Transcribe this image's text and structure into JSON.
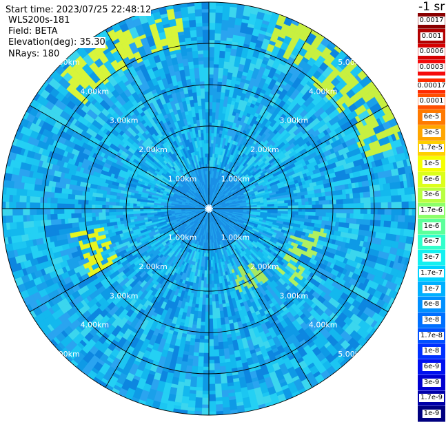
{
  "header": {
    "start_time": "Start time: 2023/07/25 22:48:12",
    "instrument": "WLS200s-181",
    "field": "Field: BETA",
    "elevation": "Elevation(deg): 35.30",
    "nrays": "NRays: 180"
  },
  "colorbar": {
    "title": "-1 sr",
    "high_group": [
      {
        "label": "0.0017",
        "color": "#8a0000"
      },
      {
        "label": "0.001",
        "color": "#b20000"
      },
      {
        "label": "0.0006",
        "color": "#d60000"
      },
      {
        "label": "0.0003",
        "color": "#f50b0b"
      }
    ],
    "main": [
      {
        "label": "0.00017",
        "color": "#ff2a00"
      },
      {
        "label": "0.0001",
        "color": "#ff4f00"
      },
      {
        "label": "6e-5",
        "color": "#ff7a00"
      },
      {
        "label": "3e-5",
        "color": "#ffa600"
      },
      {
        "label": "1.7e-5",
        "color": "#ffd000"
      },
      {
        "label": "1e-5",
        "color": "#f5ff00"
      },
      {
        "label": "6e-6",
        "color": "#dcff1a"
      },
      {
        "label": "3e-6",
        "color": "#b8ff40"
      },
      {
        "label": "1.7e-6",
        "color": "#8cff6a"
      },
      {
        "label": "1e-6",
        "color": "#5cff9a"
      },
      {
        "label": "6e-7",
        "color": "#30ffcc"
      },
      {
        "label": "3e-7",
        "color": "#14f0f0"
      },
      {
        "label": "1.7e-7",
        "color": "#00d2ff"
      },
      {
        "label": "1e-7",
        "color": "#00b0ff"
      },
      {
        "label": "6e-8",
        "color": "#0090ff"
      },
      {
        "label": "3e-8",
        "color": "#0070ff"
      },
      {
        "label": "1.7e-8",
        "color": "#0050ff"
      },
      {
        "label": "1e-8",
        "color": "#0030ff"
      },
      {
        "label": "6e-9",
        "color": "#0010f0"
      },
      {
        "label": "3e-9",
        "color": "#0000d0"
      },
      {
        "label": "1.7e-9",
        "color": "#0000a8"
      },
      {
        "label": "1e-9",
        "color": "#000080"
      }
    ]
  },
  "chart_data": {
    "type": "heatmap",
    "projection": "polar",
    "range_rings_km": [
      1,
      2,
      3,
      4,
      5
    ],
    "ring_labels": [
      "1.00km",
      "2.00km",
      "3.00km",
      "4.00km",
      "5.00km"
    ],
    "max_range_km": 5.0,
    "spoke_count": 12,
    "background_color": "#19c0ec",
    "enhanced_features": [
      {
        "desc": "arc",
        "azimuth_from_deg": -50,
        "azimuth_to_deg": -10,
        "range_from_km": 4.0,
        "range_to_km": 4.8,
        "color": "#d8f53a"
      },
      {
        "desc": "arc",
        "azimuth_from_deg": 20,
        "azimuth_to_deg": 70,
        "range_from_km": 4.0,
        "range_to_km": 5.0,
        "color": "#c8f040"
      },
      {
        "desc": "arc",
        "azimuth_from_deg": 240,
        "azimuth_to_deg": 260,
        "range_from_km": 2.6,
        "range_to_km": 3.4,
        "color": "#e6f520"
      },
      {
        "desc": "arc",
        "azimuth_from_deg": 100,
        "azimuth_to_deg": 130,
        "range_from_km": 2.2,
        "range_to_km": 2.8,
        "color": "#b0f060"
      },
      {
        "desc": "arc",
        "azimuth_from_deg": 140,
        "azimuth_to_deg": 160,
        "range_from_km": 1.6,
        "range_to_km": 2.2,
        "color": "#a8e860"
      }
    ]
  }
}
